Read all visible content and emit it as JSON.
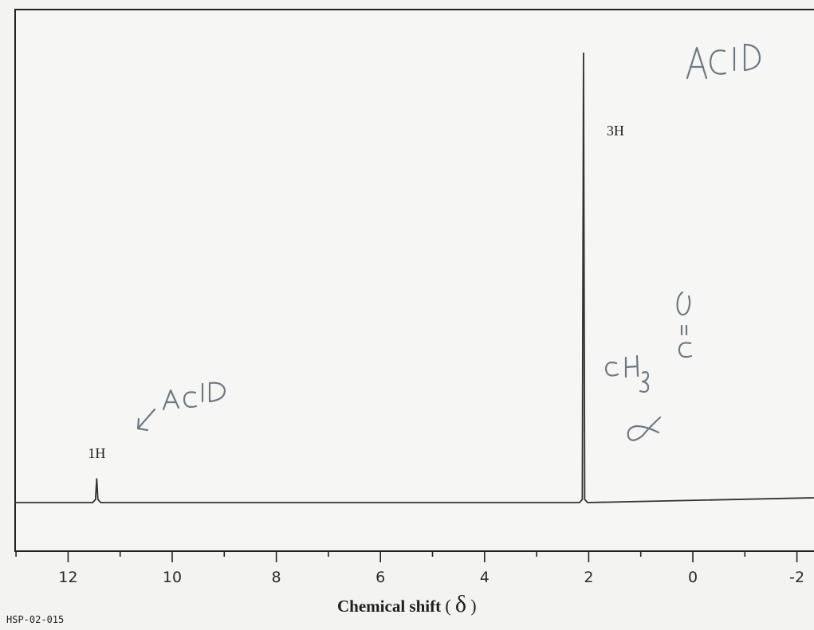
{
  "chart_data": {
    "type": "line",
    "xlabel": "Chemical shift",
    "xlabel_symbol": "δ",
    "xlim": [
      13,
      -2.4
    ],
    "x_reversed": true,
    "x_ticks": [
      12,
      10,
      8,
      6,
      4,
      2,
      0,
      -2
    ],
    "x_tick_labels": [
      "12",
      "10",
      "8",
      "6",
      "4",
      "2",
      "0",
      "-2"
    ],
    "baseline": 0,
    "ylim": [
      0,
      1
    ],
    "series": [
      {
        "peaks": [
          {
            "shift": 11.45,
            "relative_height": 0.054,
            "integration": "1H"
          },
          {
            "shift": 2.1,
            "relative_height": 1.0,
            "integration": "3H"
          }
        ]
      }
    ],
    "grid": false
  },
  "catalog_code": "HSP-02-015",
  "handwritten": {
    "top_right_note": "ACID",
    "left_note": "ACID",
    "molecule": "CH3 C=O",
    "alpha": "α"
  }
}
